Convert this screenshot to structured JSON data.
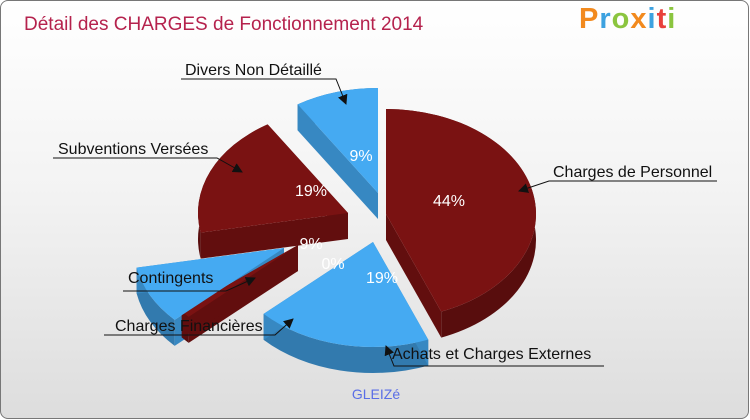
{
  "header": {
    "title": "Détail des CHARGES de Fonctionnement 2014"
  },
  "logo": {
    "p": "P",
    "r": "r",
    "o": "o",
    "x": "x",
    "i1": "i",
    "t": "t",
    "i2": "i"
  },
  "footer": {
    "caption": "GLEIZé"
  },
  "colors": {
    "dark_red": "#7a1212",
    "blue": "#45aaf2"
  },
  "chart_data": {
    "type": "pie",
    "title": "Détail des CHARGES de Fonctionnement 2014",
    "slices": [
      {
        "label": "Charges de Personnel",
        "value": 44,
        "pct_label": "44%",
        "color": "#7a1212"
      },
      {
        "label": "Achats et Charges Externes",
        "value": 19,
        "pct_label": "19%",
        "color": "#45aaf2"
      },
      {
        "label": "Charges Financières",
        "value": 0,
        "pct_label": "0%",
        "color": "#7a1212"
      },
      {
        "label": "Contingents",
        "value": 9,
        "pct_label": "9%",
        "color": "#45aaf2"
      },
      {
        "label": "Subventions Versées",
        "value": 19,
        "pct_label": "19%",
        "color": "#7a1212"
      },
      {
        "label": "Divers Non Détaillé",
        "value": 9,
        "pct_label": "9%",
        "color": "#45aaf2"
      }
    ]
  }
}
